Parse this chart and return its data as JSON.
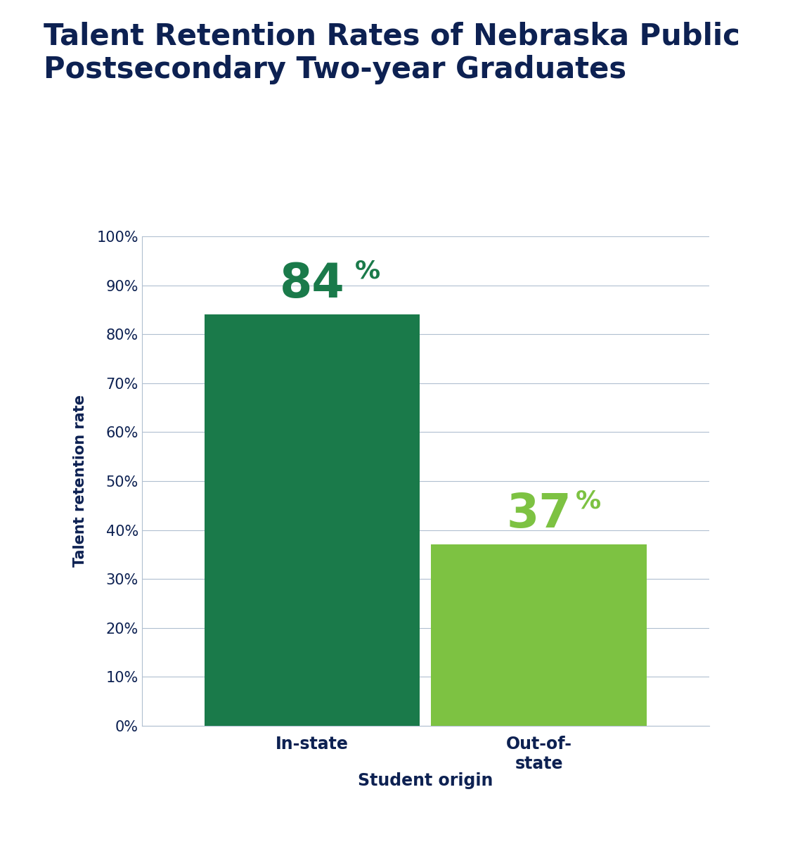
{
  "title_line1": "Talent Retention Rates of Nebraska Public",
  "title_line2": "Postsecondary Two-year Graduates",
  "title_color": "#0d2152",
  "title_fontsize": 30,
  "categories": [
    "In-state",
    "Out-of-\nstate"
  ],
  "values": [
    84,
    37
  ],
  "bar_colors": [
    "#1a7a4a",
    "#7dc242"
  ],
  "label_colors": [
    "#1a7a4a",
    "#7dc242"
  ],
  "label_numbers": [
    "84",
    "37"
  ],
  "ylabel": "Talent retention rate",
  "ylabel_color": "#0d2152",
  "ylabel_fontsize": 15,
  "xlabel": "Student origin",
  "xlabel_color": "#0d2152",
  "xlabel_fontsize": 17,
  "tick_color": "#0d2152",
  "tick_fontsize": 15,
  "xtick_colors": [
    "#1a7a4a",
    "#7dc242"
  ],
  "xtick_fontsize": 17,
  "ylim": [
    0,
    100
  ],
  "yticks": [
    0,
    10,
    20,
    30,
    40,
    50,
    60,
    70,
    80,
    90,
    100
  ],
  "grid_color": "#b0bfd0",
  "background_color": "#ffffff",
  "label_fontsize_big": 48,
  "label_fontsize_pct": 26,
  "bar_width": 0.38
}
